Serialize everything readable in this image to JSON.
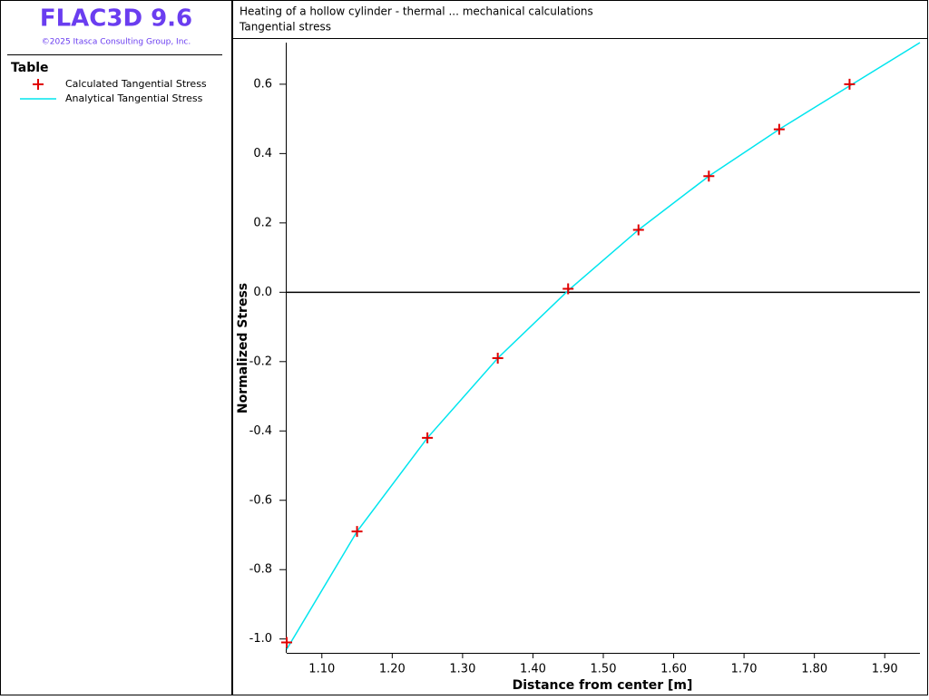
{
  "header": {
    "product": "FLAC3D 9.6",
    "copyright": "©2025 Itasca Consulting Group, Inc."
  },
  "legend_title": "Table",
  "chart_data": {
    "type": "line",
    "title": "Heating of a hollow cylinder - thermal ... mechanical calculations",
    "subtitle": "Tangential stress",
    "x_label": "Distance from center [m]",
    "y_label": "Normalized Stress",
    "xlim": [
      1.05,
      1.95
    ],
    "ylim": [
      -1.04,
      0.72
    ],
    "xticks": [
      {
        "value": 1.1,
        "label": "1.10"
      },
      {
        "value": 1.2,
        "label": "1.20"
      },
      {
        "value": 1.3,
        "label": "1.30"
      },
      {
        "value": 1.4,
        "label": "1.40"
      },
      {
        "value": 1.5,
        "label": "1.50"
      },
      {
        "value": 1.6,
        "label": "1.60"
      },
      {
        "value": 1.7,
        "label": "1.70"
      },
      {
        "value": 1.8,
        "label": "1.80"
      },
      {
        "value": 1.9,
        "label": "1.90"
      }
    ],
    "yticks": [
      {
        "value": -1,
        "label": "-1.0"
      },
      -0.8,
      -0.6,
      -0.4,
      -0.2,
      {
        "value": 0,
        "label": "0.0"
      },
      0.2,
      0.4,
      0.6
    ],
    "zero_line": true,
    "series": [
      {
        "name": "Calculated Tangential Stress",
        "color": "#e00000",
        "marker": "plus",
        "x": [
          1.05,
          1.15,
          1.25,
          1.35,
          1.45,
          1.55,
          1.65,
          1.75,
          1.85
        ],
        "values": [
          -1.01,
          -0.69,
          -0.42,
          -0.19,
          0.01,
          0.18,
          0.335,
          0.47,
          0.6
        ]
      },
      {
        "name": "Analytical Tangential Stress",
        "color": "#00e5ee",
        "marker": "none",
        "x": [
          1.05,
          1.15,
          1.25,
          1.35,
          1.45,
          1.55,
          1.65,
          1.75,
          1.85,
          1.95
        ],
        "values": [
          -1.03,
          -0.69,
          -0.42,
          -0.19,
          0.005,
          0.18,
          0.335,
          0.47,
          0.595,
          0.72
        ]
      }
    ]
  }
}
